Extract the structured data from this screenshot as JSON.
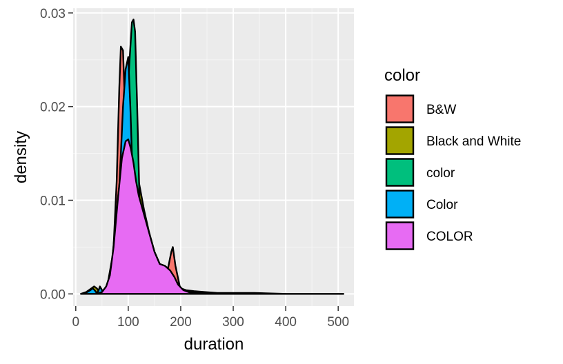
{
  "chart_data": {
    "type": "area",
    "subtype": "density",
    "xlabel": "duration",
    "ylabel": "density",
    "xlim": [
      -5,
      530
    ],
    "ylim": [
      -0.0013,
      0.0305
    ],
    "x_ticks": [
      0,
      100,
      200,
      300,
      400,
      500
    ],
    "x_tick_labels": [
      "0",
      "100",
      "200",
      "300",
      "400",
      "500"
    ],
    "y_ticks": [
      0.0,
      0.01,
      0.02,
      0.03
    ],
    "y_tick_labels": [
      "0.00",
      "0.01",
      "0.02",
      "0.03"
    ],
    "grid": true,
    "legend": {
      "title": "color",
      "position": "right",
      "items": [
        {
          "label": "B&W",
          "color": "#F8766D"
        },
        {
          "label": "Black and White",
          "color": "#A3A500"
        },
        {
          "label": "color",
          "color": "#00BF7D"
        },
        {
          "label": "Color",
          "color": "#00B0F6"
        },
        {
          "label": "COLOR",
          "color": "#E76BF3"
        }
      ]
    },
    "series": [
      {
        "name": "B&W",
        "color": "#F8766D",
        "x": [
          10,
          25,
          40,
          55,
          65,
          72,
          78,
          83,
          86,
          90,
          95,
          100,
          110,
          120,
          135,
          150,
          165,
          175,
          182,
          185,
          190,
          200,
          215
        ],
        "y": [
          0,
          0,
          0,
          0.0001,
          0.001,
          0.005,
          0.012,
          0.022,
          0.0264,
          0.026,
          0.018,
          0.015,
          0.012,
          0.009,
          0.005,
          0.0028,
          0.0022,
          0.0025,
          0.0045,
          0.005,
          0.003,
          0.0003,
          0
        ]
      },
      {
        "name": "Black and White",
        "color": "#A3A500",
        "x": [
          10,
          20,
          30,
          35,
          40,
          45,
          52,
          60,
          70,
          80,
          90,
          100,
          110,
          120,
          130,
          140,
          150,
          160,
          175,
          190,
          200,
          210,
          225,
          245,
          270,
          300,
          340,
          400,
          450,
          500,
          510
        ],
        "y": [
          0,
          0.0002,
          0.0006,
          0.0008,
          0.0006,
          0.0002,
          0.0001,
          0.0008,
          0.004,
          0.01,
          0.015,
          0.0165,
          0.015,
          0.012,
          0.009,
          0.0065,
          0.0045,
          0.0032,
          0.0028,
          0.0015,
          0.0006,
          0.0004,
          0.0003,
          0.0002,
          0.0001,
          0.0001,
          0.0001,
          0,
          0,
          0,
          0
        ]
      },
      {
        "name": "color",
        "color": "#00BF7D",
        "x": [
          50,
          65,
          75,
          85,
          92,
          97,
          102,
          107,
          110,
          113,
          117,
          122,
          128,
          135,
          145,
          160,
          180,
          200,
          215
        ],
        "y": [
          0,
          0.0005,
          0.002,
          0.008,
          0.015,
          0.019,
          0.0245,
          0.029,
          0.0293,
          0.028,
          0.02,
          0.009,
          0.006,
          0.005,
          0.0038,
          0.0028,
          0.0012,
          0.0002,
          0
        ]
      },
      {
        "name": "Color",
        "color": "#00B0F6",
        "x": [
          10,
          22,
          28,
          32,
          36,
          40,
          43,
          46,
          52,
          60,
          70,
          80,
          86,
          90,
          95,
          100,
          104,
          108,
          112,
          117,
          125,
          135,
          150,
          170,
          190,
          200,
          215,
          235,
          255
        ],
        "y": [
          0,
          0.0002,
          0.0004,
          0.0006,
          0.0004,
          0.0001,
          0.0003,
          0.0008,
          0.0002,
          0.0002,
          0.002,
          0.008,
          0.015,
          0.02,
          0.024,
          0.0253,
          0.02,
          0.013,
          0.011,
          0.009,
          0.0075,
          0.0058,
          0.0035,
          0.0025,
          0.0012,
          0.0004,
          0.0002,
          0.0001,
          0
        ]
      },
      {
        "name": "COLOR",
        "color": "#E76BF3",
        "x": [
          40,
          50,
          58,
          65,
          72,
          80,
          88,
          95,
          100,
          105,
          110,
          115,
          120,
          130,
          140,
          150,
          160,
          170,
          180,
          188,
          195,
          205,
          220,
          240
        ],
        "y": [
          0,
          0.0002,
          0.0008,
          0.002,
          0.005,
          0.01,
          0.0145,
          0.0163,
          0.0165,
          0.0155,
          0.014,
          0.012,
          0.0105,
          0.0085,
          0.0065,
          0.0045,
          0.0032,
          0.003,
          0.0025,
          0.0018,
          0.001,
          0.0004,
          0.0001,
          0
        ]
      }
    ]
  }
}
